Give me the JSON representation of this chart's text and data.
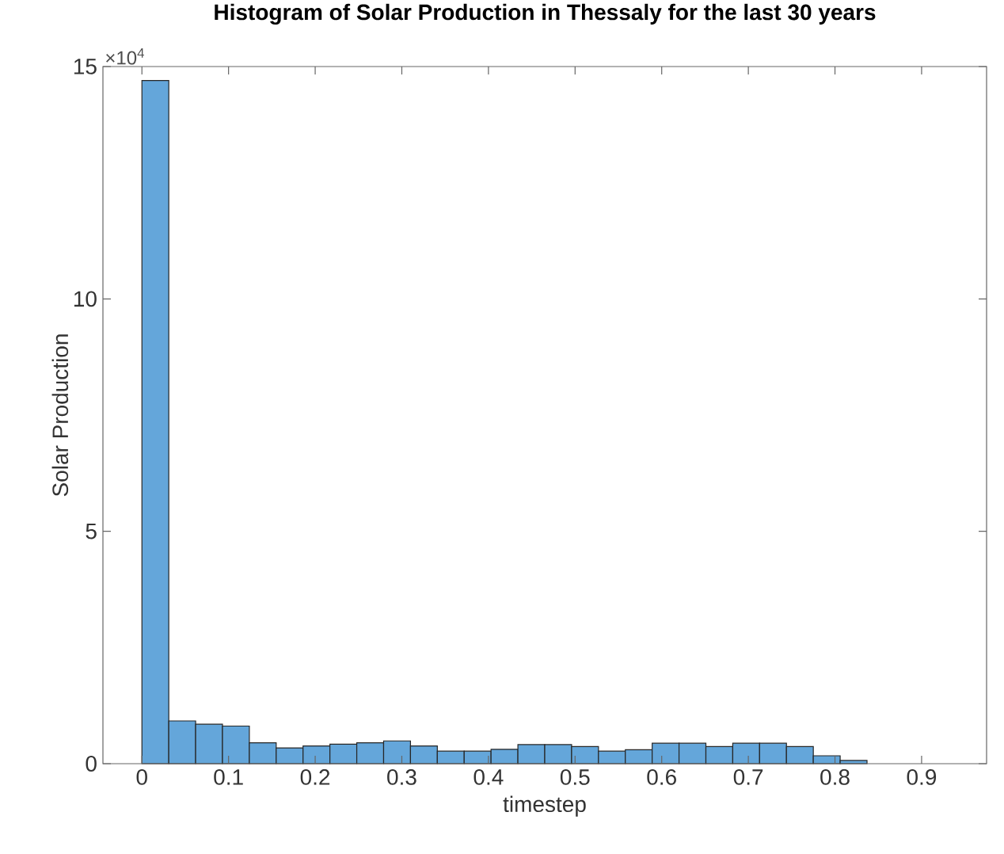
{
  "chart_data": {
    "type": "histogram",
    "title": "Histogram of Solar Production in Thessaly for the last 30 years",
    "xlabel": "timestep",
    "ylabel": "Solar Production",
    "annotations": [
      "×10$^{4}$"
    ],
    "bins": [
      0,
      0.031,
      0.062,
      0.093,
      0.124,
      0.155,
      0.186,
      0.217,
      0.248,
      0.279,
      0.31,
      0.341,
      0.372,
      0.403,
      0.434,
      0.465,
      0.496,
      0.527,
      0.558,
      0.589,
      0.62,
      0.651,
      0.682,
      0.713,
      0.744,
      0.775,
      0.806,
      0.837
    ],
    "values": [
      14.7,
      0.92,
      0.85,
      0.81,
      0.45,
      0.34,
      0.38,
      0.42,
      0.45,
      0.49,
      0.38,
      0.27,
      0.27,
      0.31,
      0.41,
      0.41,
      0.37,
      0.27,
      0.3,
      0.44,
      0.44,
      0.37,
      0.44,
      0.44,
      0.37,
      0.17,
      0.07
    ],
    "color": "#64a6da",
    "xlim": [
      -0.045,
      0.975
    ],
    "ylim": [
      0,
      15
    ],
    "xticks": [
      0,
      0.1,
      0.2,
      0.3,
      0.4,
      0.5,
      0.6,
      0.7,
      0.8,
      0.9
    ],
    "yticks": [
      0,
      5,
      10,
      15
    ]
  }
}
